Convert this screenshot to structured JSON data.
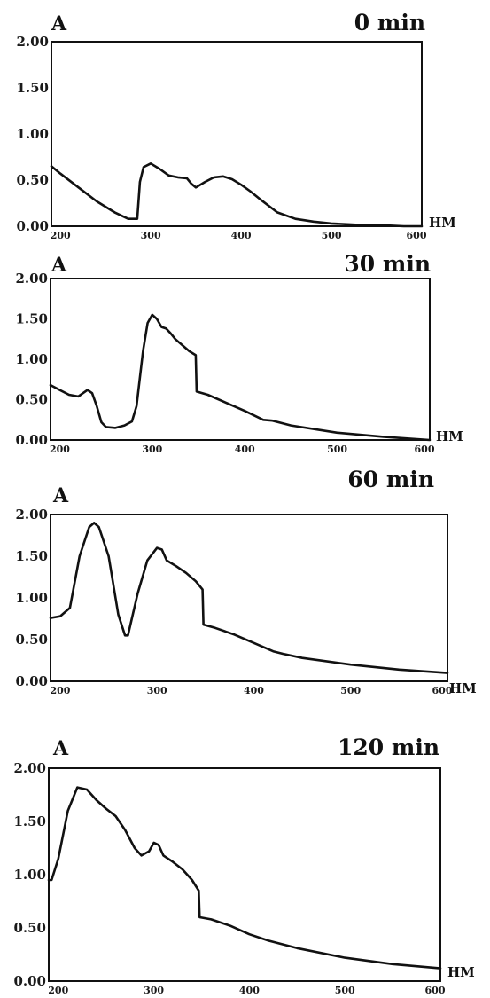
{
  "chart_data": [
    {
      "type": "line",
      "title": "0 min",
      "ylabel": "A",
      "xlabel": "HM",
      "xlim": [
        190,
        600
      ],
      "ylim": [
        0,
        2
      ],
      "x_ticks": [
        "200",
        "300",
        "400",
        "500",
        "600"
      ],
      "y_ticks": [
        "0.00",
        "0.50",
        "1.00",
        "1.50",
        "2.00"
      ],
      "series": [
        {
          "x": [
            190,
            200,
            220,
            240,
            260,
            275,
            285,
            288,
            292,
            300,
            310,
            320,
            330,
            340,
            345,
            350,
            360,
            370,
            380,
            390,
            400,
            410,
            420,
            440,
            460,
            480,
            500,
            520,
            540,
            560,
            580,
            600
          ],
          "y": [
            0.65,
            0.57,
            0.42,
            0.27,
            0.15,
            0.08,
            0.08,
            0.48,
            0.64,
            0.68,
            0.62,
            0.55,
            0.53,
            0.52,
            0.46,
            0.42,
            0.48,
            0.53,
            0.54,
            0.51,
            0.45,
            0.38,
            0.3,
            0.15,
            0.08,
            0.05,
            0.03,
            0.02,
            0.01,
            0.01,
            0.0,
            0.0
          ]
        }
      ]
    },
    {
      "type": "line",
      "title": "30 min",
      "ylabel": "A",
      "xlabel": "HM",
      "xlim": [
        190,
        600
      ],
      "ylim": [
        0,
        2
      ],
      "x_ticks": [
        "200",
        "300",
        "400",
        "500",
        "600"
      ],
      "y_ticks": [
        "0.00",
        "0.50",
        "1.00",
        "1.50",
        "2.00"
      ],
      "series": [
        {
          "x": [
            190,
            200,
            210,
            220,
            230,
            235,
            240,
            245,
            250,
            260,
            270,
            278,
            283,
            290,
            295,
            300,
            305,
            310,
            315,
            320,
            325,
            330,
            340,
            347,
            348,
            360,
            380,
            400,
            420,
            430,
            450,
            500,
            550,
            600
          ],
          "y": [
            0.68,
            0.62,
            0.56,
            0.54,
            0.62,
            0.58,
            0.42,
            0.22,
            0.16,
            0.15,
            0.18,
            0.23,
            0.42,
            1.1,
            1.45,
            1.55,
            1.5,
            1.4,
            1.38,
            1.32,
            1.25,
            1.2,
            1.1,
            1.05,
            0.6,
            0.56,
            0.46,
            0.36,
            0.25,
            0.24,
            0.18,
            0.09,
            0.04,
            0.0
          ]
        }
      ]
    },
    {
      "type": "line",
      "title": "60 min",
      "ylabel": "A",
      "xlabel": "HM",
      "xlim": [
        190,
        600
      ],
      "ylim": [
        0,
        2
      ],
      "x_ticks": [
        "200",
        "300",
        "400",
        "500",
        "600"
      ],
      "y_ticks": [
        "0.00",
        "0.50",
        "1.00",
        "1.50",
        "2.00"
      ],
      "series": [
        {
          "x": [
            190,
            200,
            210,
            220,
            230,
            235,
            240,
            250,
            260,
            267,
            270,
            280,
            290,
            300,
            305,
            310,
            320,
            330,
            340,
            347,
            348,
            360,
            380,
            400,
            420,
            430,
            450,
            500,
            550,
            600
          ],
          "y": [
            0.76,
            0.78,
            0.88,
            1.5,
            1.85,
            1.9,
            1.85,
            1.5,
            0.8,
            0.55,
            0.55,
            1.05,
            1.45,
            1.6,
            1.58,
            1.45,
            1.38,
            1.3,
            1.2,
            1.1,
            0.68,
            0.64,
            0.56,
            0.46,
            0.36,
            0.33,
            0.28,
            0.2,
            0.14,
            0.1
          ]
        }
      ]
    },
    {
      "type": "line",
      "title": "120 min",
      "ylabel": "A",
      "xlabel": "HM",
      "xlim": [
        190,
        600
      ],
      "ylim": [
        0,
        2
      ],
      "x_ticks": [
        "200",
        "300",
        "400",
        "500",
        "600"
      ],
      "y_ticks": [
        "0.00",
        "0.50",
        "1.00",
        "1.50",
        "2.00"
      ],
      "series": [
        {
          "x": [
            190,
            193,
            200,
            210,
            220,
            230,
            240,
            250,
            260,
            270,
            280,
            287,
            295,
            300,
            305,
            310,
            320,
            330,
            340,
            347,
            348,
            360,
            380,
            400,
            420,
            450,
            500,
            550,
            600
          ],
          "y": [
            0.95,
            0.95,
            1.15,
            1.6,
            1.82,
            1.8,
            1.7,
            1.62,
            1.55,
            1.42,
            1.25,
            1.18,
            1.22,
            1.3,
            1.28,
            1.18,
            1.12,
            1.05,
            0.95,
            0.85,
            0.6,
            0.58,
            0.52,
            0.44,
            0.38,
            0.31,
            0.22,
            0.16,
            0.12
          ]
        }
      ]
    }
  ]
}
